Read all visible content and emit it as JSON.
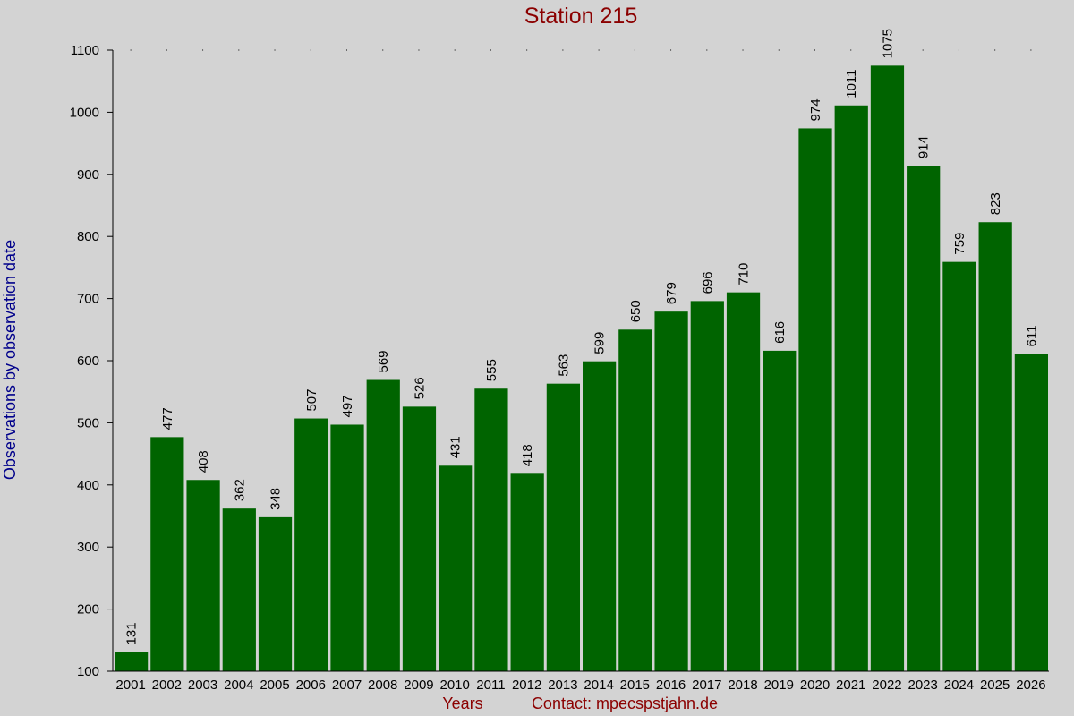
{
  "chart_data": {
    "type": "bar",
    "title": "Station 215",
    "xlabel": "Years",
    "ylabel": "Observations by observation date",
    "contact": "Contact: mpecspstjahn.de",
    "ylim": [
      100,
      1100
    ],
    "yticks": [
      100,
      200,
      300,
      400,
      500,
      600,
      700,
      800,
      900,
      1000,
      1100
    ],
    "categories": [
      "2001",
      "2002",
      "2003",
      "2004",
      "2005",
      "2006",
      "2007",
      "2008",
      "2009",
      "2010",
      "2011",
      "2012",
      "2013",
      "2014",
      "2015",
      "2016",
      "2017",
      "2018",
      "2019",
      "2020",
      "2021",
      "2022",
      "2023",
      "2024",
      "2025",
      "2026"
    ],
    "values": [
      131,
      477,
      408,
      362,
      348,
      507,
      497,
      569,
      526,
      431,
      555,
      418,
      563,
      599,
      650,
      679,
      696,
      710,
      616,
      974,
      1011,
      1075,
      914,
      759,
      823,
      611
    ],
    "bar_color": "#006400",
    "background": "#d3d3d3"
  }
}
